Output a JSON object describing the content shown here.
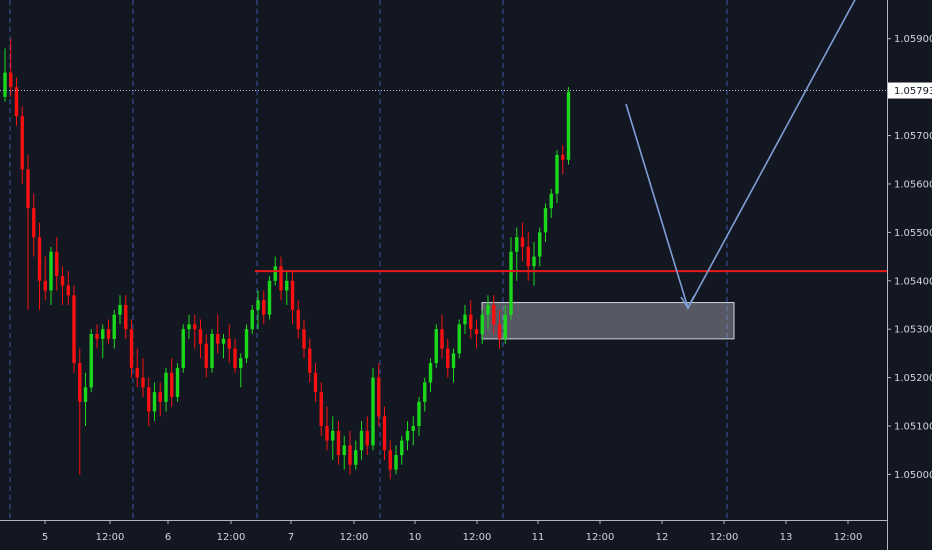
{
  "chart_data": {
    "type": "candlestick",
    "title": "",
    "ylim": [
      1.0491,
      1.0598
    ],
    "y_ticks": [
      "1.05000",
      "1.05100",
      "1.05200",
      "1.05300",
      "1.05400",
      "1.05500",
      "1.05600",
      "1.05700",
      "1.05900"
    ],
    "x_ticks": [
      "5",
      "12:00",
      "6",
      "12:00",
      "7",
      "12:00",
      "10",
      "12:00",
      "11",
      "12:00",
      "12",
      "12:00",
      "13",
      "12:00"
    ],
    "day_separators": [
      "4",
      "5",
      "6",
      "7",
      "10",
      "11"
    ],
    "current_price": "1.05793",
    "resistance_level": 1.0542,
    "demand_zone": {
      "low": 1.0528,
      "high": 1.05355
    },
    "projection_path": [
      {
        "bar": 100,
        "price": 1.0578
      },
      {
        "bar": 112,
        "price": 1.0535
      },
      {
        "bar": 142,
        "price": 1.06
      }
    ],
    "colors": {
      "up": "#1cd81c",
      "down": "#f71010",
      "resistance": "#e8191a",
      "zone": "#b2b5be",
      "arrow": "#7f9ed6",
      "grid": "#3a57a1"
    },
    "candles": [
      [
        1.0578,
        1.0588,
        1.0577,
        1.0583
      ],
      [
        1.0583,
        1.059,
        1.0578,
        1.058
      ],
      [
        1.058,
        1.0582,
        1.0572,
        1.0574
      ],
      [
        1.0574,
        1.0576,
        1.056,
        1.0563
      ],
      [
        1.0563,
        1.0566,
        1.0534,
        1.0555
      ],
      [
        1.0555,
        1.0558,
        1.0545,
        1.0549
      ],
      [
        1.0549,
        1.0552,
        1.0534,
        1.054
      ],
      [
        1.054,
        1.0545,
        1.0536,
        1.0538
      ],
      [
        1.0538,
        1.0547,
        1.0535,
        1.0546
      ],
      [
        1.0546,
        1.0549,
        1.0538,
        1.0541
      ],
      [
        1.0541,
        1.0543,
        1.0535,
        1.0539
      ],
      [
        1.0539,
        1.0542,
        1.0535,
        1.0537
      ],
      [
        1.0537,
        1.0539,
        1.0521,
        1.0523
      ],
      [
        1.0523,
        1.0526,
        1.05,
        1.0515
      ],
      [
        1.0515,
        1.0521,
        1.051,
        1.0518
      ],
      [
        1.0518,
        1.053,
        1.0517,
        1.0529
      ],
      [
        1.0529,
        1.0531,
        1.0526,
        1.0528
      ],
      [
        1.0528,
        1.0531,
        1.0524,
        1.053
      ],
      [
        1.053,
        1.0532,
        1.0527,
        1.0528
      ],
      [
        1.0528,
        1.0534,
        1.0526,
        1.0533
      ],
      [
        1.0533,
        1.0537,
        1.0531,
        1.0535
      ],
      [
        1.0535,
        1.0537,
        1.0528,
        1.053
      ],
      [
        1.053,
        1.0532,
        1.052,
        1.0522
      ],
      [
        1.0522,
        1.0526,
        1.0518,
        1.052
      ],
      [
        1.052,
        1.0524,
        1.0516,
        1.0518
      ],
      [
        1.0518,
        1.052,
        1.051,
        1.0513
      ],
      [
        1.0513,
        1.0519,
        1.0511,
        1.0517
      ],
      [
        1.0517,
        1.0519,
        1.0512,
        1.0515
      ],
      [
        1.0515,
        1.0522,
        1.0513,
        1.0521
      ],
      [
        1.0521,
        1.0524,
        1.0514,
        1.0516
      ],
      [
        1.0516,
        1.0523,
        1.0515,
        1.0522
      ],
      [
        1.0522,
        1.0531,
        1.0521,
        1.053
      ],
      [
        1.053,
        1.0533,
        1.0528,
        1.0531
      ],
      [
        1.0531,
        1.0533,
        1.0526,
        1.053
      ],
      [
        1.053,
        1.0532,
        1.0524,
        1.0527
      ],
      [
        1.0527,
        1.0529,
        1.052,
        1.0522
      ],
      [
        1.0522,
        1.053,
        1.0521,
        1.0529
      ],
      [
        1.0529,
        1.0533,
        1.0525,
        1.0527
      ],
      [
        1.0527,
        1.0529,
        1.0524,
        1.0528
      ],
      [
        1.0528,
        1.0531,
        1.0523,
        1.0526
      ],
      [
        1.0526,
        1.0528,
        1.0521,
        1.0522
      ],
      [
        1.0522,
        1.0525,
        1.0518,
        1.0524
      ],
      [
        1.0524,
        1.0531,
        1.0523,
        1.053
      ],
      [
        1.053,
        1.0535,
        1.0529,
        1.0534
      ],
      [
        1.0534,
        1.0538,
        1.053,
        1.0536
      ],
      [
        1.0536,
        1.0538,
        1.0531,
        1.0533
      ],
      [
        1.0533,
        1.0541,
        1.0532,
        1.054
      ],
      [
        1.054,
        1.0545,
        1.0539,
        1.0543
      ],
      [
        1.0543,
        1.0545,
        1.0536,
        1.0538
      ],
      [
        1.0538,
        1.0542,
        1.0535,
        1.054
      ],
      [
        1.054,
        1.0542,
        1.0531,
        1.0534
      ],
      [
        1.0534,
        1.0536,
        1.0528,
        1.053
      ],
      [
        1.053,
        1.0532,
        1.0524,
        1.0526
      ],
      [
        1.0526,
        1.0528,
        1.0519,
        1.0521
      ],
      [
        1.0521,
        1.0523,
        1.0515,
        1.0517
      ],
      [
        1.0517,
        1.0519,
        1.0508,
        1.051
      ],
      [
        1.051,
        1.0514,
        1.0505,
        1.0507
      ],
      [
        1.0507,
        1.0512,
        1.0503,
        1.0509
      ],
      [
        1.0509,
        1.0511,
        1.0502,
        1.0504
      ],
      [
        1.0504,
        1.0508,
        1.0501,
        1.0506
      ],
      [
        1.0506,
        1.0509,
        1.05,
        1.0502
      ],
      [
        1.0502,
        1.0507,
        1.0501,
        1.0505
      ],
      [
        1.0505,
        1.0511,
        1.0503,
        1.0509
      ],
      [
        1.0509,
        1.0512,
        1.0504,
        1.0506
      ],
      [
        1.0506,
        1.0522,
        1.0505,
        1.052
      ],
      [
        1.052,
        1.0523,
        1.051,
        1.0512
      ],
      [
        1.0512,
        1.0514,
        1.0503,
        1.0505
      ],
      [
        1.0505,
        1.0507,
        1.0499,
        1.0501
      ],
      [
        1.0501,
        1.0506,
        1.05,
        1.0504
      ],
      [
        1.0504,
        1.0508,
        1.0502,
        1.0507
      ],
      [
        1.0507,
        1.0511,
        1.0505,
        1.0509
      ],
      [
        1.0509,
        1.0512,
        1.0506,
        1.051
      ],
      [
        1.051,
        1.0516,
        1.0508,
        1.0515
      ],
      [
        1.0515,
        1.052,
        1.0513,
        1.0519
      ],
      [
        1.0519,
        1.0524,
        1.0517,
        1.0523
      ],
      [
        1.0523,
        1.0531,
        1.0522,
        1.053
      ],
      [
        1.053,
        1.0533,
        1.0524,
        1.0526
      ],
      [
        1.0526,
        1.0528,
        1.052,
        1.0522
      ],
      [
        1.0522,
        1.0526,
        1.0519,
        1.0525
      ],
      [
        1.0525,
        1.0532,
        1.0524,
        1.0531
      ],
      [
        1.0531,
        1.0535,
        1.0529,
        1.0533
      ],
      [
        1.0533,
        1.0536,
        1.0528,
        1.053
      ],
      [
        1.053,
        1.0532,
        1.0526,
        1.0529
      ],
      [
        1.0529,
        1.0534,
        1.0527,
        1.0533
      ],
      [
        1.0533,
        1.0537,
        1.053,
        1.0535
      ],
      [
        1.0535,
        1.0537,
        1.0529,
        1.0531
      ],
      [
        1.0531,
        1.0534,
        1.0526,
        1.0528
      ],
      [
        1.0528,
        1.0535,
        1.0527,
        1.0533
      ],
      [
        1.0533,
        1.0549,
        1.0532,
        1.0546
      ],
      [
        1.0546,
        1.0551,
        1.054,
        1.0549
      ],
      [
        1.0549,
        1.0552,
        1.0544,
        1.0547
      ],
      [
        1.0547,
        1.055,
        1.054,
        1.0543
      ],
      [
        1.0543,
        1.0548,
        1.0539,
        1.0545
      ],
      [
        1.0545,
        1.0551,
        1.0543,
        1.055
      ],
      [
        1.055,
        1.0556,
        1.0548,
        1.0555
      ],
      [
        1.0555,
        1.0559,
        1.0553,
        1.0558
      ],
      [
        1.0558,
        1.0567,
        1.0556,
        1.0566
      ],
      [
        1.0566,
        1.0568,
        1.0562,
        1.0565
      ],
      [
        1.0565,
        1.058,
        1.0564,
        1.0579
      ]
    ]
  }
}
